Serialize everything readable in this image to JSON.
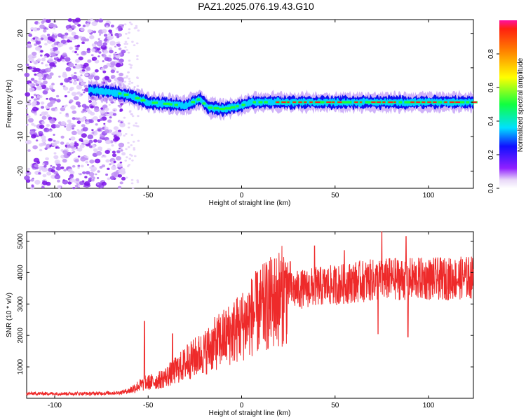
{
  "title": "PAZ1.2025.076.19.43.G10",
  "colors": {
    "snr_line": "#ee2a2a",
    "scatter": "#8a2be2",
    "axis": "#000000"
  },
  "chart_data": [
    {
      "type": "heatmap",
      "xlabel": "Height of straight line (km)",
      "ylabel": "Frequency (Hz)",
      "xlim": [
        -115,
        124
      ],
      "ylim": [
        -25,
        24
      ],
      "xticks": [
        -100,
        -50,
        0,
        50,
        100
      ],
      "yticks": [
        -20,
        -10,
        0,
        10,
        20
      ],
      "xtick_labels": [
        "-100",
        "-50",
        "0",
        "50",
        "100"
      ],
      "ytick_labels": [
        "-20",
        "-10",
        "0",
        "10",
        "20"
      ],
      "ridge": {
        "x": [
          -82,
          -70,
          -60,
          -50,
          -40,
          -30,
          -22,
          -18,
          -10,
          -5,
          0,
          5,
          10,
          20,
          30,
          40,
          50,
          60,
          70,
          80,
          90,
          100,
          110,
          124
        ],
        "y": [
          3.5,
          3,
          2,
          0,
          -0.5,
          -1,
          1,
          -1.5,
          -2,
          -1.5,
          -1,
          0,
          0,
          0,
          0,
          0,
          0,
          0,
          0,
          0,
          0,
          0,
          0,
          0
        ]
      },
      "colorbar": {
        "label": "Normalized spectral amplitude",
        "ticks": [
          0.0,
          0.2,
          0.4,
          0.6,
          0.8
        ],
        "tick_labels": [
          "0.0",
          "0.2",
          "0.4",
          "0.6",
          "0.8"
        ],
        "range": [
          0,
          1
        ]
      },
      "grid": false
    },
    {
      "type": "line",
      "xlabel": "Height of straight line (km)",
      "ylabel": "SNR (10 * v/v)",
      "xlim": [
        -115,
        124
      ],
      "ylim": [
        0,
        5300
      ],
      "xticks": [
        -100,
        -50,
        0,
        50,
        100
      ],
      "yticks": [
        1000,
        2000,
        3000,
        4000,
        5000
      ],
      "xtick_labels": [
        "-100",
        "-50",
        "0",
        "50",
        "100"
      ],
      "ytick_labels": [
        "1000",
        "2000",
        "3000",
        "4000",
        "5000"
      ],
      "envelope": {
        "x": [
          -115,
          -80,
          -65,
          -60,
          -55,
          -50,
          -45,
          -40,
          -35,
          -30,
          -25,
          -20,
          -15,
          -10,
          -5,
          0,
          5,
          10,
          15,
          20,
          25,
          30,
          40,
          50,
          60,
          70,
          80,
          90,
          100,
          110,
          124
        ],
        "y": [
          150,
          150,
          180,
          250,
          400,
          500,
          550,
          700,
          900,
          1100,
          1300,
          1450,
          1700,
          1900,
          2100,
          2300,
          2600,
          2800,
          3000,
          3200,
          3400,
          3450,
          3550,
          3600,
          3700,
          3750,
          3800,
          3800,
          3800,
          3800,
          3850
        ]
      },
      "spikes": [
        {
          "x": -52,
          "y": 2450
        },
        {
          "x": -37,
          "y": 2050
        },
        {
          "x": -29,
          "y": 1700
        },
        {
          "x": 23,
          "y": 4050
        },
        {
          "x": 26,
          "y": 4350
        },
        {
          "x": 39,
          "y": 4850
        },
        {
          "x": 55,
          "y": 4700
        },
        {
          "x": 75,
          "y": 5300
        },
        {
          "x": 88,
          "y": 5150
        },
        {
          "x": 89,
          "y": 1950
        },
        {
          "x": 73,
          "y": 2050
        }
      ],
      "grid": false
    }
  ]
}
